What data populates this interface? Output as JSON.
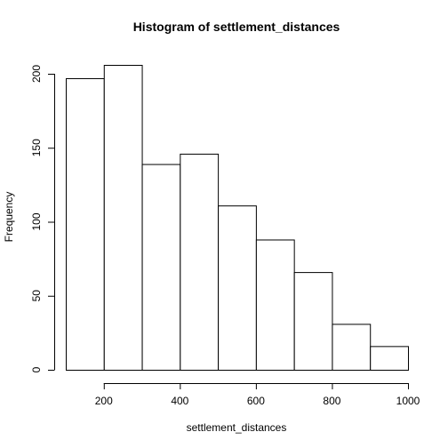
{
  "chart_data": {
    "type": "bar",
    "title": "Histogram of settlement_distances",
    "xlabel": "settlement_distances",
    "ylabel": "Frequency",
    "bins": [
      {
        "from": 100,
        "to": 200,
        "count": 197
      },
      {
        "from": 200,
        "to": 300,
        "count": 206
      },
      {
        "from": 300,
        "to": 400,
        "count": 139
      },
      {
        "from": 400,
        "to": 500,
        "count": 146
      },
      {
        "from": 500,
        "to": 600,
        "count": 111
      },
      {
        "from": 600,
        "to": 700,
        "count": 88
      },
      {
        "from": 700,
        "to": 800,
        "count": 66
      },
      {
        "from": 800,
        "to": 900,
        "count": 31
      },
      {
        "from": 900,
        "to": 1000,
        "count": 16
      }
    ],
    "xlim": [
      100,
      1000
    ],
    "ylim": [
      0,
      206
    ],
    "xticks": [
      200,
      400,
      600,
      800,
      1000
    ],
    "yticks": [
      0,
      50,
      100,
      150,
      200
    ],
    "grid": false,
    "bar_fill": "#ffffff",
    "bar_stroke": "#000000"
  }
}
